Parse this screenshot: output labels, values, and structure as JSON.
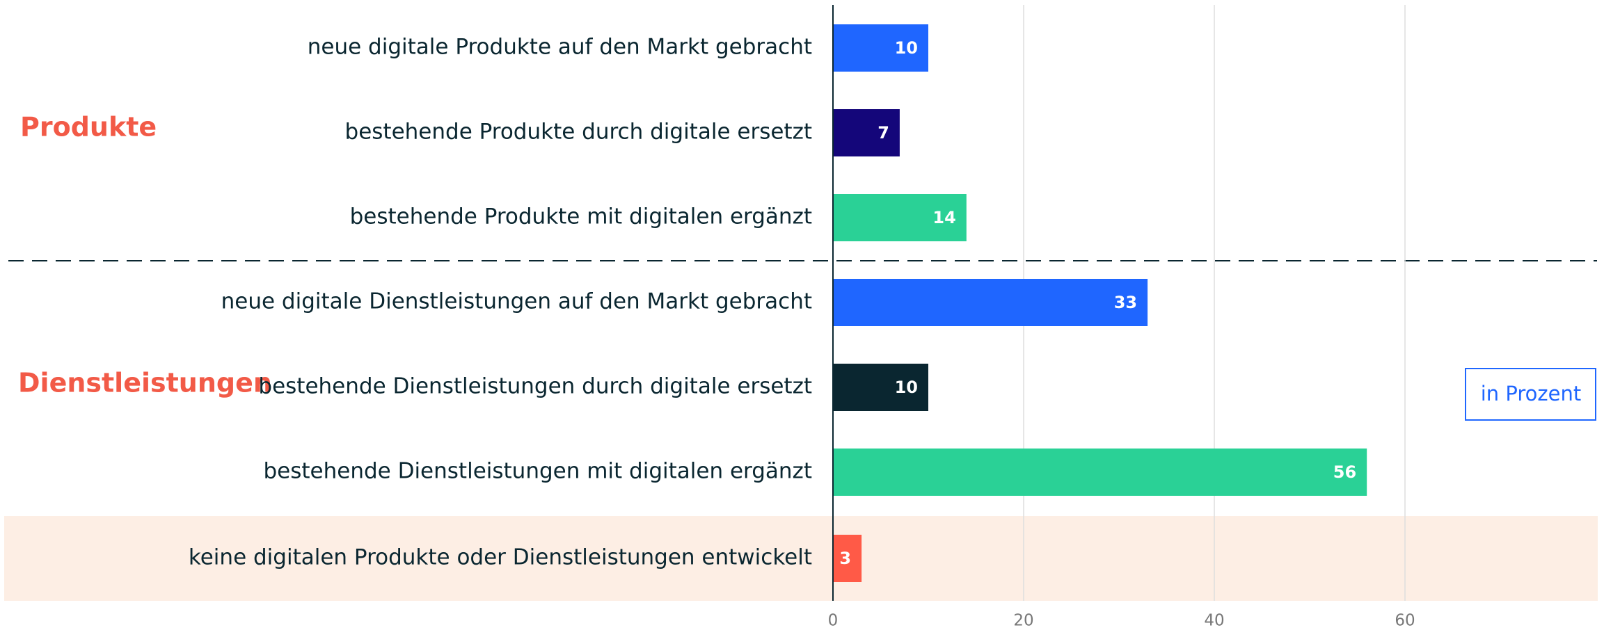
{
  "chart_data": {
    "type": "bar",
    "orientation": "horizontal",
    "categories": [
      "neue digitale Produkte auf den Markt gebracht",
      "bestehende Produkte durch digitale ersetzt",
      "bestehende Produkte mit digitalen ergänzt",
      "neue digitale Dienstleistungen auf den Markt gebracht",
      "bestehende Dienstleistungen durch digitale ersetzt",
      "bestehende Dienstleistungen mit digitalen ergänzt",
      "keine digitalen Produkte oder Dienstleistungen entwickelt"
    ],
    "values": [
      10,
      7,
      14,
      33,
      10,
      56,
      3
    ],
    "colors": [
      "#1f66ff",
      "#14067a",
      "#2ad196",
      "#1f66ff",
      "#0a2630",
      "#2ad196",
      "#ff5a47"
    ],
    "groups": [
      "Produkte",
      "Dienstleistungen"
    ],
    "annotation": "in Prozent",
    "xlim": [
      0,
      80
    ],
    "xticks": [
      0,
      20,
      40,
      60
    ],
    "grid": true
  }
}
